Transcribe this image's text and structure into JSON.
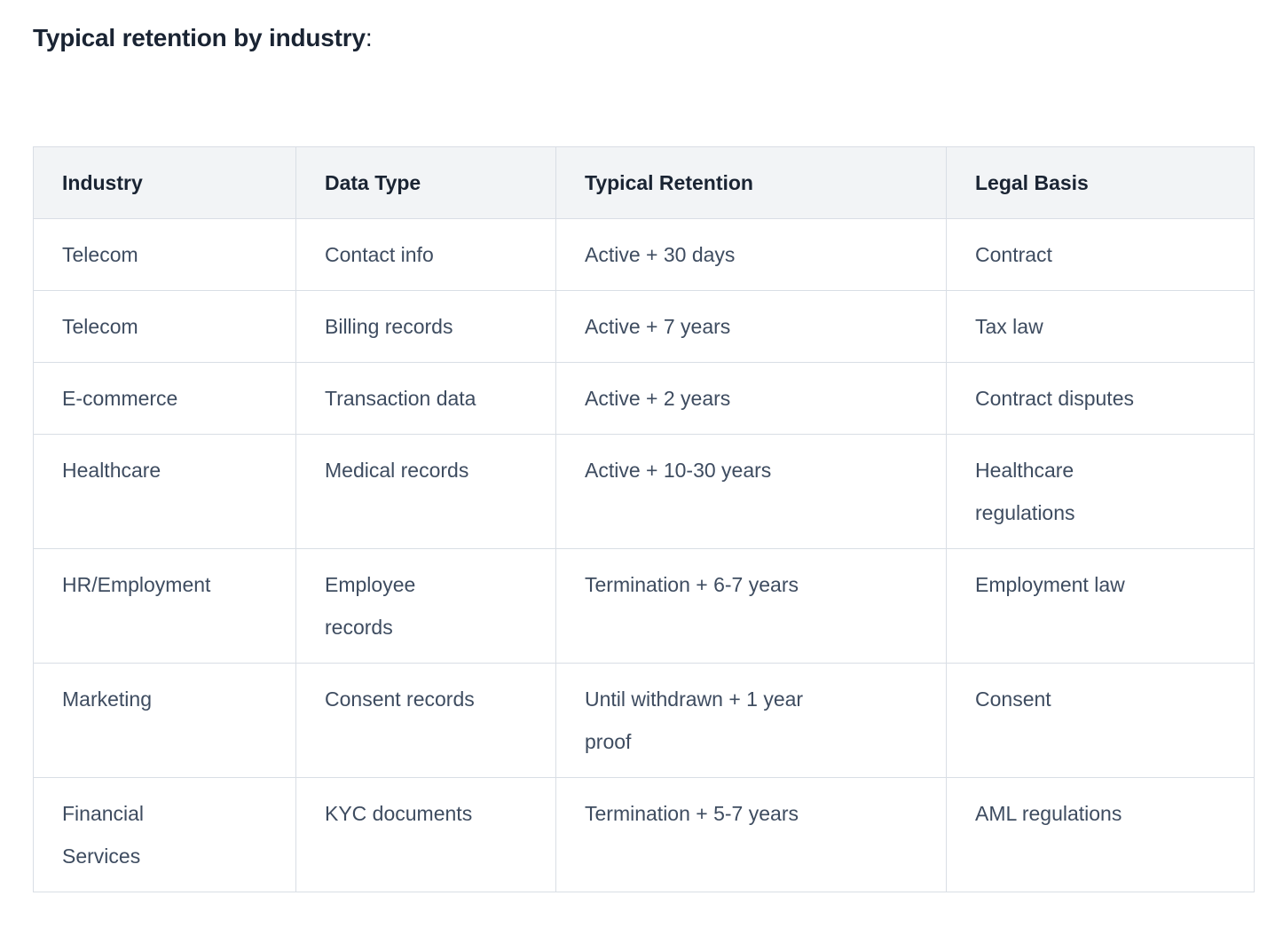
{
  "page": {
    "title_bold": "Typical retention by industry",
    "title_suffix": ":"
  },
  "table": {
    "columns": [
      "Industry",
      "Data Type",
      "Typical Retention",
      "Legal Basis"
    ],
    "rows": [
      [
        "Telecom",
        "Contact info",
        "Active + 30 days",
        "Contract"
      ],
      [
        "Telecom",
        "Billing records",
        "Active + 7 years",
        "Tax law"
      ],
      [
        "E-commerce",
        "Transaction data",
        "Active + 2 years",
        "Contract disputes"
      ],
      [
        "Healthcare",
        "Medical records",
        "Active + 10-30 years",
        "Healthcare\nregulations"
      ],
      [
        "HR/Employment",
        "Employee\nrecords",
        "Termination + 6-7 years",
        "Employment law"
      ],
      [
        "Marketing",
        "Consent records",
        "Until withdrawn + 1 year\nproof",
        "Consent"
      ],
      [
        "Financial\nServices",
        "KYC documents",
        "Termination + 5-7 years",
        "AML regulations"
      ]
    ]
  },
  "colors": {
    "heading_text": "#1a2433",
    "body_text": "#3e4c60",
    "border": "#d9dee5",
    "header_bg": "#f2f4f6",
    "page_bg": "#ffffff"
  }
}
